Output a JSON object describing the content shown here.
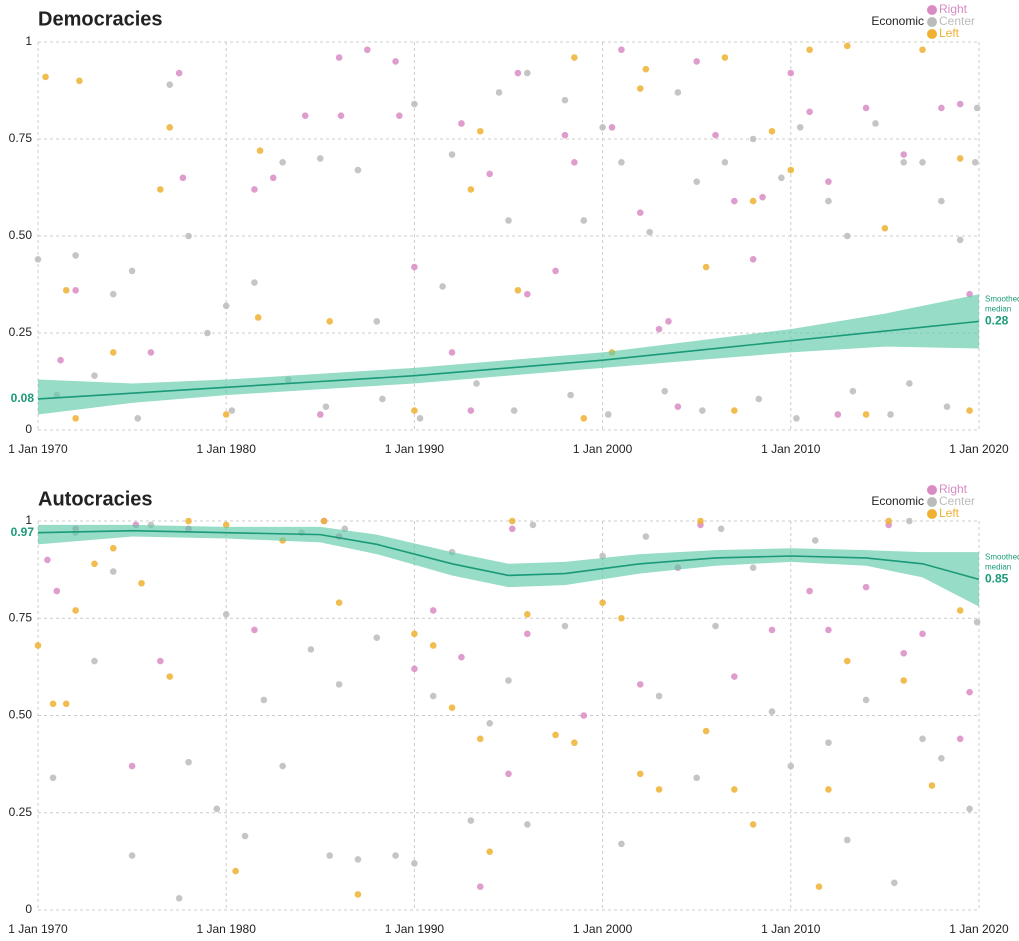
{
  "chart_data": [
    {
      "type": "scatter",
      "title": "Democracies",
      "legend_title": "Economic",
      "xlim": [
        1970,
        2020
      ],
      "ylim": [
        0,
        1
      ],
      "grid": true,
      "xticks": [
        {
          "value": 1970,
          "label": "1 Jan 1970"
        },
        {
          "value": 1980,
          "label": "1 Jan 1980"
        },
        {
          "value": 1990,
          "label": "1 Jan 1990"
        },
        {
          "value": 2000,
          "label": "1 Jan 2000"
        },
        {
          "value": 2010,
          "label": "1 Jan 2010"
        },
        {
          "value": 2020,
          "label": "1 Jan 2020"
        }
      ],
      "yticks": [
        0,
        0.25,
        {
          "value": 0.5,
          "label": "0.50"
        },
        0.75,
        1
      ],
      "series": [
        {
          "name": "Right",
          "color": "#d98cc4",
          "x": [
            1971.2,
            1972,
            1977.5,
            1977.7,
            1981.5,
            1982.5,
            1984.2,
            1986,
            1986.1,
            1987.5,
            1989,
            1989.2,
            1990,
            1992.5,
            1994,
            1995.5,
            1996,
            1997.5,
            1998,
            1998.5,
            2000.5,
            2001,
            2002,
            2003,
            2005,
            2006,
            2007,
            2008,
            2008.5,
            2010,
            2011,
            2012,
            2014,
            2016,
            2018,
            2019,
            2019.5,
            1985,
            1993,
            2004,
            2012.5,
            1976,
            1992,
            2003.5
          ],
          "values": [
            0.18,
            0.36,
            0.92,
            0.65,
            0.62,
            0.65,
            0.81,
            0.96,
            0.81,
            0.98,
            0.95,
            0.81,
            0.42,
            0.79,
            0.66,
            0.92,
            0.35,
            0.41,
            0.76,
            0.69,
            0.78,
            0.98,
            0.56,
            0.26,
            0.95,
            0.76,
            0.59,
            0.44,
            0.6,
            0.92,
            0.82,
            0.64,
            0.83,
            0.71,
            0.83,
            0.84,
            0.35,
            0.04,
            0.05,
            0.06,
            0.04,
            0.2,
            0.2,
            0.28
          ]
        },
        {
          "name": "Center",
          "color": "#bbbbbb",
          "x": [
            1970,
            1971,
            1972,
            1973,
            1974,
            1975,
            1977,
            1978,
            1979,
            1980,
            1981.5,
            1983,
            1985,
            1987,
            1988,
            1990,
            1991.5,
            1992,
            1994.5,
            1995,
            1996,
            1998,
            1999,
            2000,
            2001,
            2002.5,
            2004,
            2005,
            2006.5,
            2008,
            2009.5,
            2010.5,
            2012,
            2013,
            2014.5,
            2016,
            2017,
            2018,
            2019,
            2019.9,
            2019.8,
            1975.3,
            1980.3,
            1985.3,
            1990.3,
            1995.3,
            2000.3,
            2005.3,
            2010.3,
            2015.3,
            2018.3,
            1983.3,
            1993.3,
            2003.3,
            2013.3,
            1988.3,
            1998.3,
            2008.3,
            2016.3
          ],
          "values": [
            0.44,
            0.09,
            0.45,
            0.14,
            0.35,
            0.41,
            0.89,
            0.5,
            0.25,
            0.32,
            0.38,
            0.69,
            0.7,
            0.67,
            0.28,
            0.84,
            0.37,
            0.71,
            0.87,
            0.54,
            0.92,
            0.85,
            0.54,
            0.78,
            0.69,
            0.51,
            0.87,
            0.64,
            0.69,
            0.75,
            0.65,
            0.78,
            0.59,
            0.5,
            0.79,
            0.69,
            0.69,
            0.59,
            0.49,
            0.83,
            0.69,
            0.03,
            0.05,
            0.06,
            0.03,
            0.05,
            0.04,
            0.05,
            0.03,
            0.04,
            0.06,
            0.13,
            0.12,
            0.1,
            0.1,
            0.08,
            0.09,
            0.08,
            0.12
          ]
        },
        {
          "name": "Left",
          "color": "#eeb133",
          "x": [
            1970.4,
            1971.5,
            1972.2,
            1974,
            1976.5,
            1977,
            1981.8,
            1981.7,
            1985.5,
            1993,
            1993.5,
            1995.5,
            1998.5,
            2000.5,
            2002,
            2002.3,
            2005.5,
            2006.5,
            2008,
            2009,
            2010,
            2011,
            2013,
            2015,
            2017,
            2019,
            1972,
            1980,
            1990,
            1999,
            2007,
            2014,
            2019.5
          ],
          "values": [
            0.91,
            0.36,
            0.9,
            0.2,
            0.62,
            0.78,
            0.72,
            0.29,
            0.28,
            0.62,
            0.77,
            0.36,
            0.96,
            0.2,
            0.88,
            0.93,
            0.42,
            0.96,
            0.59,
            0.77,
            0.67,
            0.98,
            0.99,
            0.52,
            0.98,
            0.7,
            0.03,
            0.04,
            0.05,
            0.03,
            0.05,
            0.04,
            0.05
          ]
        }
      ],
      "median": {
        "name": "Smoothed median",
        "color": "#1a9a78",
        "band_color": "#5ecaa8",
        "x": [
          1970,
          1975,
          1980,
          1985,
          1990,
          1995,
          2000,
          2005,
          2010,
          2015,
          2020
        ],
        "values": [
          0.08,
          0.095,
          0.11,
          0.125,
          0.14,
          0.16,
          0.18,
          0.205,
          0.23,
          0.255,
          0.28
        ],
        "lower": [
          0.04,
          0.07,
          0.09,
          0.105,
          0.12,
          0.14,
          0.16,
          0.18,
          0.2,
          0.215,
          0.21
        ],
        "upper": [
          0.13,
          0.12,
          0.13,
          0.145,
          0.16,
          0.18,
          0.2,
          0.23,
          0.26,
          0.3,
          0.35
        ]
      }
    },
    {
      "type": "scatter",
      "title": "Autocracies",
      "legend_title": "Economic",
      "xlim": [
        1970,
        2020
      ],
      "ylim": [
        0,
        1
      ],
      "grid": true,
      "xticks": [
        {
          "value": 1970,
          "label": "1 Jan 1970"
        },
        {
          "value": 1980,
          "label": "1 Jan 1980"
        },
        {
          "value": 1990,
          "label": "1 Jan 1990"
        },
        {
          "value": 2000,
          "label": "1 Jan 2000"
        },
        {
          "value": 2010,
          "label": "1 Jan 2010"
        },
        {
          "value": 2020,
          "label": "1 Jan 2020"
        }
      ],
      "yticks": [
        0,
        0.25,
        {
          "value": 0.5,
          "label": "0.50"
        },
        0.75,
        1
      ],
      "series": [
        {
          "name": "Right",
          "color": "#d98cc4",
          "x": [
            1970.5,
            1971,
            1972,
            1975,
            1976.5,
            1978,
            1981.5,
            1986,
            1990,
            1991,
            1992.5,
            1993.5,
            1995,
            1996,
            1999,
            2002,
            2004,
            2007,
            2009,
            2011,
            2012,
            2014,
            2016,
            2017,
            2019,
            2019.5,
            1975.2,
            1985.2,
            1995.2,
            2005.2,
            2015.2
          ],
          "values": [
            0.9,
            0.82,
            0.98,
            0.37,
            0.64,
            0.98,
            0.72,
            0.96,
            0.62,
            0.77,
            0.65,
            0.06,
            0.35,
            0.71,
            0.5,
            0.58,
            0.88,
            0.6,
            0.72,
            0.82,
            0.72,
            0.83,
            0.66,
            0.71,
            0.44,
            0.56,
            0.99,
            1,
            0.98,
            0.99,
            0.99
          ]
        },
        {
          "name": "Center",
          "color": "#bbbbbb",
          "x": [
            1970.8,
            1972,
            1973,
            1974,
            1975,
            1977.5,
            1978,
            1979.5,
            1980,
            1981,
            1982,
            1983,
            1984.5,
            1985.5,
            1986,
            1987,
            1988,
            1989,
            1990,
            1991,
            1992,
            1993,
            1994,
            1995,
            1996,
            1998,
            2000,
            2001,
            2003,
            2005,
            2006,
            2008,
            2009,
            2010,
            2012,
            2013,
            2014,
            2015.5,
            2017,
            2018,
            2019.5,
            2019.9,
            1976,
            1986.3,
            1996.3,
            2006.3,
            2016.3,
            1984,
            2002.3,
            2011.3
          ],
          "values": [
            0.34,
            0.97,
            0.64,
            0.87,
            0.14,
            0.03,
            0.38,
            0.26,
            0.76,
            0.19,
            0.54,
            0.37,
            0.67,
            0.14,
            0.58,
            0.13,
            0.7,
            0.14,
            0.12,
            0.55,
            0.92,
            0.23,
            0.48,
            0.59,
            0.22,
            0.73,
            0.91,
            0.17,
            0.55,
            0.34,
            0.73,
            0.88,
            0.51,
            0.37,
            0.43,
            0.18,
            0.54,
            0.07,
            0.44,
            0.39,
            0.26,
            0.74,
            0.99,
            0.98,
            0.99,
            0.98,
            1,
            0.97,
            0.96,
            0.95
          ]
        },
        {
          "name": "Left",
          "color": "#eeb133",
          "x": [
            1970,
            1970.8,
            1971.5,
            1972,
            1973,
            1974,
            1975.5,
            1977,
            1980,
            1980.5,
            1983,
            1986,
            1987,
            1990,
            1991,
            1992,
            1993.5,
            1994,
            1996,
            1997.5,
            1998.5,
            2000,
            2001,
            2002,
            2003,
            2005.5,
            2007,
            2008,
            2011.5,
            2012,
            2013,
            2016,
            2017.5,
            2019,
            1985.2,
            1995.2,
            2005.2,
            2015.2,
            1978
          ],
          "values": [
            0.68,
            0.53,
            0.53,
            0.77,
            0.89,
            0.93,
            0.84,
            0.6,
            0.99,
            0.1,
            0.95,
            0.79,
            0.04,
            0.71,
            0.68,
            0.52,
            0.44,
            0.15,
            0.76,
            0.45,
            0.43,
            0.79,
            0.75,
            0.35,
            0.31,
            0.46,
            0.31,
            0.22,
            0.06,
            0.31,
            0.64,
            0.59,
            0.32,
            0.77,
            1,
            1,
            1,
            1,
            1
          ]
        }
      ],
      "median": {
        "name": "Smoothed median",
        "color": "#1a9a78",
        "band_color": "#5ecaa8",
        "x": [
          1970,
          1975,
          1980,
          1985,
          1988,
          1992,
          1995,
          1998,
          2002,
          2006,
          2010,
          2014,
          2017,
          2020
        ],
        "values": [
          0.97,
          0.975,
          0.97,
          0.965,
          0.94,
          0.89,
          0.86,
          0.865,
          0.89,
          0.905,
          0.91,
          0.905,
          0.89,
          0.85
        ],
        "lower": [
          0.94,
          0.96,
          0.955,
          0.945,
          0.915,
          0.86,
          0.83,
          0.835,
          0.865,
          0.885,
          0.895,
          0.885,
          0.855,
          0.78
        ],
        "upper": [
          0.99,
          0.99,
          0.985,
          0.985,
          0.965,
          0.92,
          0.89,
          0.895,
          0.915,
          0.925,
          0.93,
          0.925,
          0.92,
          0.92
        ]
      }
    }
  ]
}
